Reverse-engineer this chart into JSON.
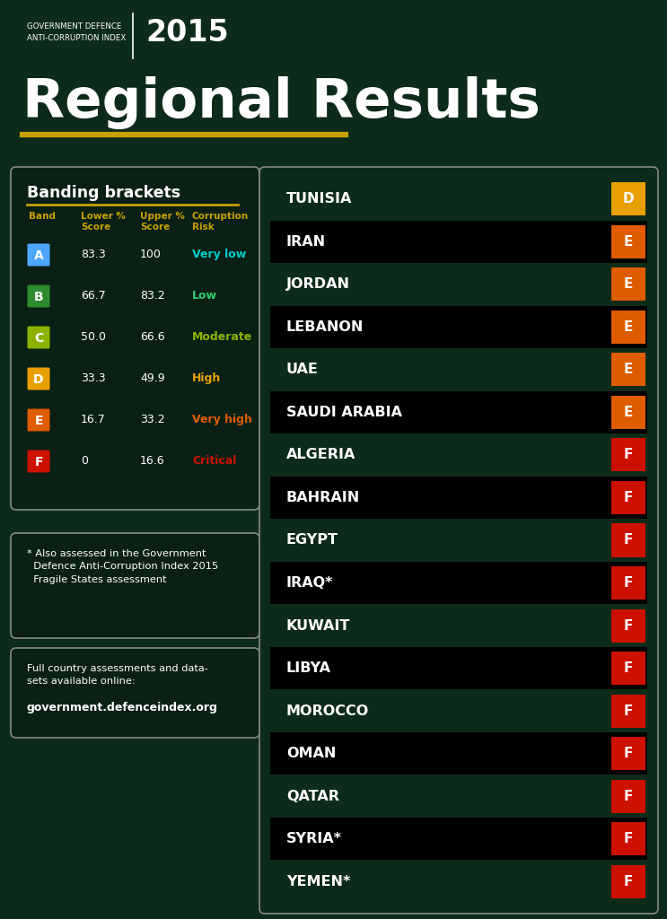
{
  "bg_color": "#0d2b1a",
  "title": "Regional Results",
  "header_text": "GOVERNMENT DEFENCE\nANTI-CORRUPTION INDEX",
  "year": "2015",
  "gold_color": "#c8a000",
  "banding_brackets": {
    "title": "Banding brackets",
    "header_color": "#c8a000",
    "bands": [
      {
        "letter": "A",
        "color": "#4da6ff",
        "lower": "83.3",
        "upper": "100",
        "risk": "Very low",
        "risk_color": "#00cccc"
      },
      {
        "letter": "B",
        "color": "#2e8b2e",
        "lower": "66.7",
        "upper": "83.2",
        "risk": "Low",
        "risk_color": "#2ecc71"
      },
      {
        "letter": "C",
        "color": "#8db300",
        "lower": "50.0",
        "upper": "66.6",
        "risk": "Moderate",
        "risk_color": "#8db300"
      },
      {
        "letter": "D",
        "color": "#e8a000",
        "lower": "33.3",
        "upper": "49.9",
        "risk": "High",
        "risk_color": "#e8a000"
      },
      {
        "letter": "E",
        "color": "#e05c00",
        "lower": "16.7",
        "upper": "33.2",
        "risk": "Very high",
        "risk_color": "#e05c00"
      },
      {
        "letter": "F",
        "color": "#cc1100",
        "lower": "0",
        "upper": "16.6",
        "risk": "Critical",
        "risk_color": "#cc1100"
      }
    ]
  },
  "countries": [
    {
      "name": "TUNISIA",
      "band": "D",
      "band_color": "#e8a000",
      "row_bg": "#0d2b1a"
    },
    {
      "name": "IRAN",
      "band": "E",
      "band_color": "#e05c00",
      "row_bg": "#000000"
    },
    {
      "name": "JORDAN",
      "band": "E",
      "band_color": "#e05c00",
      "row_bg": "#0d2b1a"
    },
    {
      "name": "LEBANON",
      "band": "E",
      "band_color": "#e05c00",
      "row_bg": "#000000"
    },
    {
      "name": "UAE",
      "band": "E",
      "band_color": "#e05c00",
      "row_bg": "#0d2b1a"
    },
    {
      "name": "SAUDI ARABIA",
      "band": "E",
      "band_color": "#e05c00",
      "row_bg": "#000000"
    },
    {
      "name": "ALGERIA",
      "band": "F",
      "band_color": "#cc1100",
      "row_bg": "#0d2b1a"
    },
    {
      "name": "BAHRAIN",
      "band": "F",
      "band_color": "#cc1100",
      "row_bg": "#000000"
    },
    {
      "name": "EGYPT",
      "band": "F",
      "band_color": "#cc1100",
      "row_bg": "#0d2b1a"
    },
    {
      "name": "IRAQ*",
      "band": "F",
      "band_color": "#cc1100",
      "row_bg": "#000000"
    },
    {
      "name": "KUWAIT",
      "band": "F",
      "band_color": "#cc1100",
      "row_bg": "#0d2b1a"
    },
    {
      "name": "LIBYA",
      "band": "F",
      "band_color": "#cc1100",
      "row_bg": "#000000"
    },
    {
      "name": "MOROCCO",
      "band": "F",
      "band_color": "#cc1100",
      "row_bg": "#0d2b1a"
    },
    {
      "name": "OMAN",
      "band": "F",
      "band_color": "#cc1100",
      "row_bg": "#000000"
    },
    {
      "name": "QATAR",
      "band": "F",
      "band_color": "#cc1100",
      "row_bg": "#0d2b1a"
    },
    {
      "name": "SYRIA*",
      "band": "F",
      "band_color": "#cc1100",
      "row_bg": "#000000"
    },
    {
      "name": "YEMEN*",
      "band": "F",
      "band_color": "#cc1100",
      "row_bg": "#0d2b1a"
    }
  ],
  "footnote": "* Also assessed in the Government\n  Defence Anti-Corruption Index 2015\n  Fragile States assessment",
  "website_label": "Full country assessments and data-\nsets available online:",
  "website": "government.defenceindex.org",
  "fig_w": 743,
  "fig_h": 1024
}
